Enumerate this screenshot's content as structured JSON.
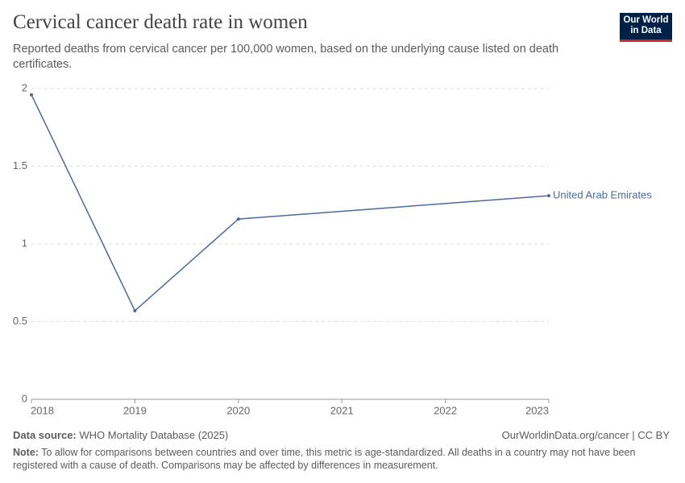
{
  "chart_data": {
    "type": "line",
    "title": "Cervical cancer death rate in women",
    "subtitle": "Reported deaths from cervical cancer per 100,000 women, based on the underlying cause listed on death certificates.",
    "x": [
      2018,
      2019,
      2020,
      2023
    ],
    "series": [
      {
        "name": "United Arab Emirates",
        "color": "#4c6a9c",
        "values": [
          1.96,
          0.57,
          1.16,
          1.31
        ]
      }
    ],
    "xlim": [
      2018,
      2023
    ],
    "xticks": [
      2018,
      2019,
      2020,
      2021,
      2022,
      2023
    ],
    "ylim": [
      0,
      2
    ],
    "yticks": [
      0,
      0.5,
      1,
      1.5,
      2
    ],
    "grid": true
  },
  "logo": [
    "Our World",
    "in Data"
  ],
  "footer": {
    "source_label": "Data source:",
    "source": "WHO Mortality Database (2025)",
    "license": "OurWorldinData.org/cancer | CC BY",
    "note_label": "Note:",
    "note": "To allow for comparisons between countries and over time, this metric is age-standardized. All deaths in a country may not have been registered with a cause of death. Comparisons may be affected by differences in measurement."
  }
}
